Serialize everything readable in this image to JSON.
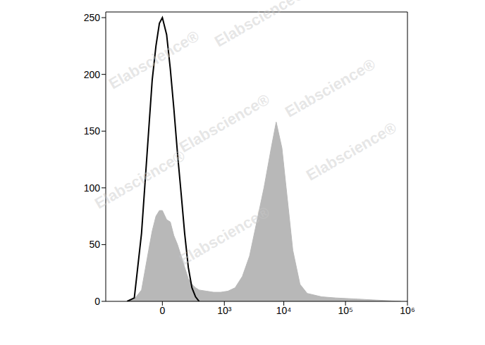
{
  "chart_data": {
    "type": "histogram",
    "log": "x",
    "x": [
      -301,
      -204,
      -130,
      -74,
      -51,
      -30,
      -13,
      0,
      19,
      38,
      59,
      84,
      112,
      143,
      180,
      222,
      270,
      324,
      457,
      633,
      860,
      1158,
      1546,
      2058,
      2723,
      3590,
      4729,
      6216,
      7515,
      9336,
      10690,
      12254,
      14030,
      18350,
      24010,
      41130,
      70260,
      157100,
      350900,
      783900
    ],
    "series": [
      {
        "type": "area",
        "color": "#b8b8b8",
        "values": [
          0,
          2,
          10,
          45,
          62,
          75,
          80,
          80,
          72,
          70,
          58,
          50,
          40,
          30,
          20,
          15,
          12,
          10,
          9,
          8,
          8,
          9,
          12,
          22,
          40,
          70,
          100,
          135,
          158,
          135,
          105,
          75,
          45,
          15,
          7,
          4,
          3,
          2,
          1,
          0
        ]
      },
      {
        "type": "line",
        "color": "#000000",
        "values": [
          0,
          3,
          60,
          150,
          195,
          225,
          245,
          250,
          235,
          205,
          170,
          130,
          95,
          60,
          30,
          12,
          4,
          0,
          null,
          null,
          null,
          null,
          null,
          null,
          null,
          null,
          null,
          null,
          null,
          null,
          null,
          null,
          null,
          null,
          null,
          null,
          null,
          null,
          null,
          null
        ]
      }
    ],
    "xlim": [
      -800,
      1000000
    ],
    "xticks": [
      0,
      {
        "value": 1000,
        "label": "10³"
      },
      {
        "value": 10000,
        "label": "10⁴"
      },
      {
        "value": 100000,
        "label": "10⁵"
      },
      {
        "value": 1000000,
        "label": "10⁶"
      }
    ],
    "ylim": [
      0,
      255
    ],
    "yticks": [
      0,
      50,
      100,
      150,
      200,
      250
    ],
    "annotations": [
      "Elabscience®"
    ]
  }
}
